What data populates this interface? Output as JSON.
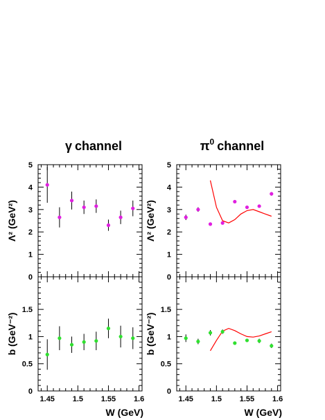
{
  "chart_data": [
    {
      "type": "scatter",
      "panel": "gamma-lambda",
      "title_symbol": "γ",
      "title": "channel",
      "ylabel": "Λ² (GeV²)",
      "xlabel": "",
      "xlim": [
        1.435,
        1.605
      ],
      "ylim": [
        0,
        5
      ],
      "yticks": [
        0,
        1,
        2,
        3,
        4,
        5
      ],
      "xticks": [],
      "marker_color": "#e020e0",
      "series": [
        {
          "x": [
            1.45,
            1.47,
            1.49,
            1.51,
            1.53,
            1.55,
            1.57,
            1.59
          ],
          "y": [
            4.1,
            2.65,
            3.4,
            3.1,
            3.15,
            2.3,
            2.65,
            3.05
          ],
          "err": [
            0.8,
            0.45,
            0.4,
            0.3,
            0.3,
            0.25,
            0.3,
            0.35
          ]
        }
      ]
    },
    {
      "type": "scatter",
      "panel": "gamma-b",
      "ylabel": "b (GeV⁻²)",
      "xlabel": "W (GeV)",
      "xlim": [
        1.435,
        1.605
      ],
      "ylim": [
        0,
        2.1
      ],
      "yticks": [
        0,
        0.5,
        1,
        1.5
      ],
      "xticks": [
        1.45,
        1.5,
        1.55,
        1.6
      ],
      "marker_color": "#30e030",
      "series": [
        {
          "x": [
            1.45,
            1.47,
            1.49,
            1.51,
            1.53,
            1.55,
            1.57,
            1.59
          ],
          "y": [
            0.67,
            0.97,
            0.85,
            0.9,
            0.92,
            1.15,
            1.0,
            0.97
          ],
          "err": [
            0.28,
            0.22,
            0.15,
            0.15,
            0.17,
            0.18,
            0.2,
            0.2
          ]
        }
      ]
    },
    {
      "type": "scatter",
      "panel": "pi0-lambda",
      "title_symbol": "π",
      "title_sup": "0",
      "title": "channel",
      "ylabel": "Λ² (GeV²)",
      "xlabel": "",
      "xlim": [
        1.435,
        1.605
      ],
      "ylim": [
        0,
        5
      ],
      "yticks": [
        0,
        1,
        2,
        3,
        4,
        5
      ],
      "xticks": [],
      "marker_color": "#e020e0",
      "curve_color": "#ff0000",
      "series": [
        {
          "x": [
            1.45,
            1.47,
            1.49,
            1.51,
            1.53,
            1.55,
            1.57,
            1.59
          ],
          "y": [
            2.65,
            3.0,
            2.35,
            2.4,
            3.35,
            3.1,
            3.15,
            3.7
          ],
          "err": [
            0.12,
            0.1,
            0.06,
            0.05,
            0.05,
            0.05,
            0.05,
            0.08
          ]
        }
      ],
      "curve": {
        "x": [
          1.49,
          1.5,
          1.51,
          1.52,
          1.53,
          1.54,
          1.55,
          1.56,
          1.57,
          1.58,
          1.59
        ],
        "y": [
          4.3,
          3.1,
          2.5,
          2.4,
          2.55,
          2.8,
          2.95,
          3.0,
          2.9,
          2.8,
          2.7
        ]
      }
    },
    {
      "type": "scatter",
      "panel": "pi0-b",
      "ylabel": "b (GeV⁻²)",
      "xlabel": "W (GeV)",
      "xlim": [
        1.435,
        1.605
      ],
      "ylim": [
        0,
        2.1
      ],
      "yticks": [
        0,
        0.5,
        1,
        1.5
      ],
      "xticks": [
        1.45,
        1.5,
        1.55,
        1.6
      ],
      "marker_color": "#30e030",
      "curve_color": "#ff0000",
      "series": [
        {
          "x": [
            1.45,
            1.47,
            1.49,
            1.51,
            1.53,
            1.55,
            1.57,
            1.59
          ],
          "y": [
            0.97,
            0.91,
            1.07,
            1.09,
            0.88,
            0.93,
            0.92,
            0.83
          ],
          "err": [
            0.07,
            0.05,
            0.05,
            0.04,
            0.03,
            0.03,
            0.04,
            0.04
          ]
        }
      ],
      "curve": {
        "x": [
          1.49,
          1.5,
          1.51,
          1.52,
          1.53,
          1.54,
          1.55,
          1.56,
          1.57,
          1.58,
          1.59
        ],
        "y": [
          0.74,
          0.93,
          1.1,
          1.15,
          1.11,
          1.05,
          1.0,
          0.99,
          1.01,
          1.05,
          1.09
        ]
      }
    }
  ]
}
